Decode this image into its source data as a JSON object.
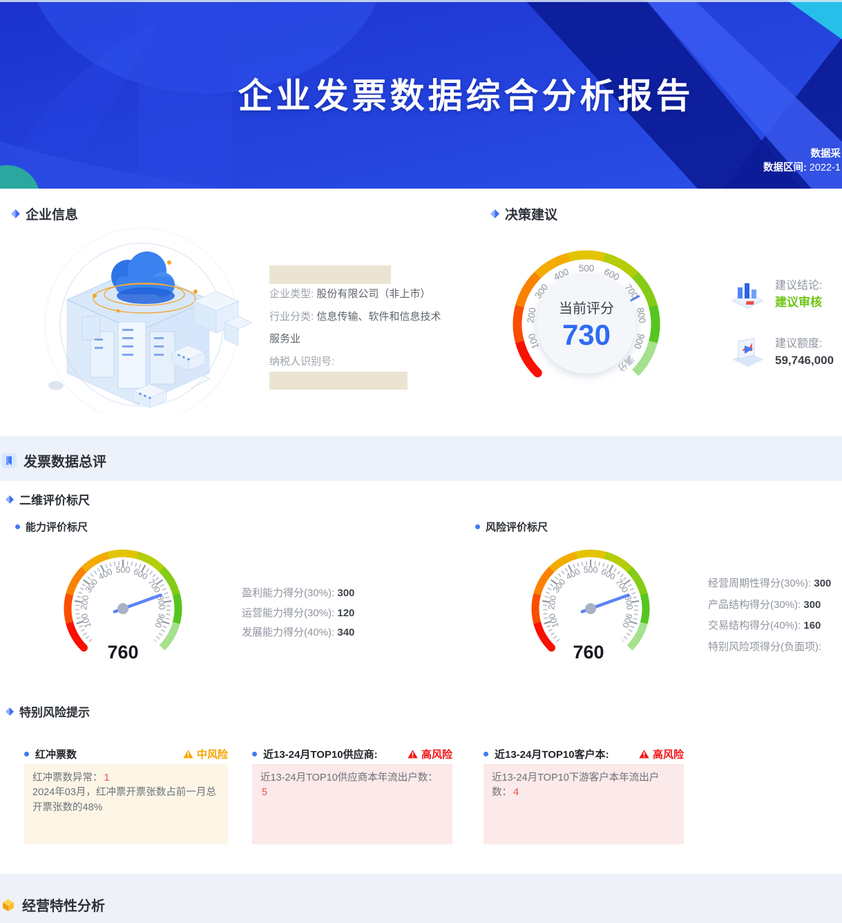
{
  "banner": {
    "title": "企业发票数据综合分析报告",
    "meta_line1": "数据采",
    "meta_line2_label": "数据区间:",
    "meta_line2_value": " 2022-1"
  },
  "company": {
    "heading": "企业信息",
    "fields": [
      {
        "label": "企业类型: ",
        "value": "股份有限公司（非上市）"
      },
      {
        "label": "行业分类: ",
        "value": "信息传输、软件和信息技术服务业"
      },
      {
        "label": "纳税人识别号: ",
        "value": ""
      }
    ]
  },
  "decision": {
    "heading": "决策建议",
    "conclusion_label": "建议结论:",
    "conclusion_value": "建议审核",
    "quota_label": "建议额度:",
    "quota_value": "59,746,000"
  },
  "summary": {
    "heading": "发票数据总评"
  },
  "two_dim": {
    "heading": "二维评价标尺",
    "left_title": "能力评价标尺",
    "right_title": "风险评价标尺"
  },
  "risk_section": {
    "heading": "特别风险提示",
    "cards": [
      {
        "title": "红冲票数",
        "level": "中风险",
        "body_prefix": "红冲票数异常：",
        "body_highlight": "1",
        "body_rest": "2024年03月，红冲票开票张数占前一月总开票张数的48%"
      },
      {
        "title": "近13-24月TOP10供应商:",
        "level": "高风险",
        "body_prefix": "近13-24月TOP10供应商本年流出户数：",
        "body_highlight": "5",
        "body_rest": ""
      },
      {
        "title": "近13-24月TOP10客户本:",
        "level": "高风险",
        "body_prefix": "近13-24月TOP10下游客户本年流出户数：",
        "body_highlight": "4",
        "body_rest": ""
      }
    ]
  },
  "bottom": {
    "heading": "经营特性分析"
  },
  "chart_data": [
    {
      "type": "gauge",
      "name": "decision-score-gauge",
      "center_label": "当前评分",
      "value": 730,
      "min": 0,
      "max": 1000,
      "tick_labels": [
        "100",
        "200",
        "300",
        "400",
        "500",
        "600",
        "700",
        "800",
        "900"
      ],
      "end_label": "满分",
      "arc_colors": [
        "#f81000",
        "#fa4d00",
        "#fb8200",
        "#f3ab00",
        "#e2c400",
        "#b4cd07",
        "#86cb14",
        "#55c51f",
        "#a5e18e"
      ]
    },
    {
      "type": "gauge",
      "name": "ability-score-gauge",
      "value": 760,
      "min": 0,
      "max": 1000,
      "tick_labels": [
        "100",
        "200",
        "300",
        "400",
        "500",
        "600",
        "700",
        "800",
        "900"
      ],
      "arc_colors": [
        "#f81000",
        "#fa4d00",
        "#fb8200",
        "#f3ab00",
        "#e2c400",
        "#b4cd07",
        "#86cb14",
        "#55c51f",
        "#a5e18e"
      ],
      "sub_scores": [
        {
          "label": "盈利能力得分(30%): ",
          "value": "300"
        },
        {
          "label": "运营能力得分(30%): ",
          "value": "120"
        },
        {
          "label": "发展能力得分(40%): ",
          "value": "340"
        }
      ]
    },
    {
      "type": "gauge",
      "name": "risk-score-gauge",
      "value": 760,
      "min": 0,
      "max": 1000,
      "tick_labels": [
        "100",
        "200",
        "300",
        "400",
        "500",
        "600",
        "700",
        "800",
        "900"
      ],
      "arc_colors": [
        "#f81000",
        "#fa4d00",
        "#fb8200",
        "#f3ab00",
        "#e2c400",
        "#b4cd07",
        "#86cb14",
        "#55c51f",
        "#a5e18e"
      ],
      "sub_scores": [
        {
          "label": "经营周期性得分(30%): ",
          "value": "300"
        },
        {
          "label": "产品结构得分(30%): ",
          "value": "300"
        },
        {
          "label": "交易结构得分(40%): ",
          "value": "160"
        },
        {
          "label": "特别风险项得分(负面项): ",
          "value": ""
        }
      ]
    }
  ],
  "colors": {
    "accent_blue": "#3f7bf4",
    "conclusion_green": "#6fc417",
    "mid_risk_orange": "#f7a400",
    "high_risk_red": "#f31414",
    "cream_card_bg": "#fdf6e6",
    "pink_card_bg": "#fce9e9",
    "redacted_beige": "#ebe4d2",
    "band_bg": "#edf1fa",
    "score_blue": "#2e6bf2"
  }
}
